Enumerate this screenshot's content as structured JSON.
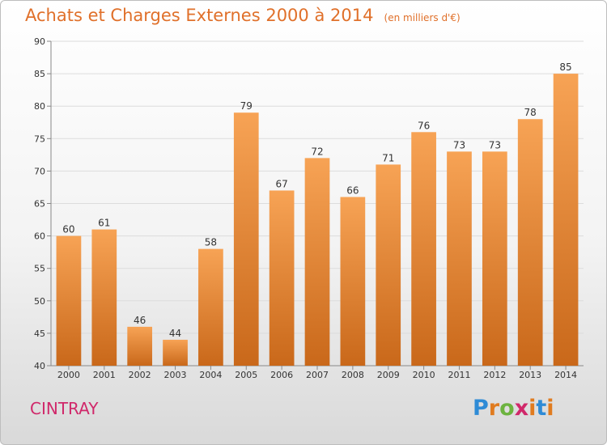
{
  "title": "Achats et Charges Externes 2000 à 2014",
  "subtitle": "(en milliers d'€)",
  "place_name": "CINTRAY",
  "logo": {
    "letters": [
      "P",
      "r",
      "o",
      "x",
      "i",
      "t",
      "i"
    ],
    "colors": [
      "#2e8bd6",
      "#e07b1f",
      "#6cb33f",
      "#d0286a",
      "#e07b1f",
      "#2e8bd6",
      "#e07b1f"
    ]
  },
  "colors": {
    "bar_top": "#f7a355",
    "bar_bottom": "#c9681a",
    "accent": "#e0702a"
  },
  "chart_data": {
    "type": "bar",
    "categories": [
      "2000",
      "2001",
      "2002",
      "2003",
      "2004",
      "2005",
      "2006",
      "2007",
      "2008",
      "2009",
      "2010",
      "2011",
      "2012",
      "2013",
      "2014"
    ],
    "values": [
      60,
      61,
      46,
      44,
      58,
      79,
      67,
      72,
      66,
      71,
      76,
      73,
      73,
      78,
      85
    ],
    "ylim": [
      40,
      90
    ],
    "yticks": [
      40,
      45,
      50,
      55,
      60,
      65,
      70,
      75,
      80,
      85,
      90
    ],
    "grid": true
  }
}
